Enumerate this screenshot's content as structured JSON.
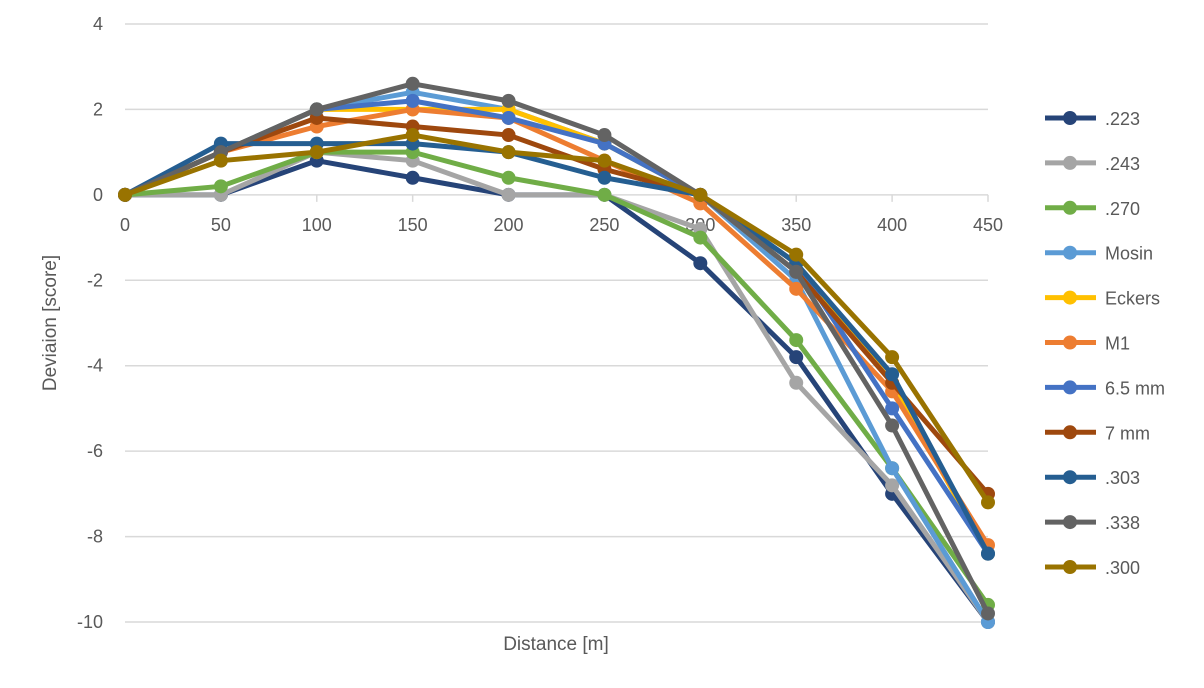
{
  "chart_data": {
    "type": "line",
    "title": "",
    "xlabel": "Distance [m]",
    "ylabel": "Deviaion [score]",
    "x": [
      0,
      50,
      100,
      150,
      200,
      250,
      300,
      350,
      400,
      450
    ],
    "xlim": [
      0,
      450
    ],
    "ylim": [
      -10,
      4
    ],
    "yticks": [
      4,
      2,
      0,
      -2,
      -4,
      -6,
      -8,
      -10
    ],
    "xticks": [
      0,
      50,
      100,
      150,
      200,
      250,
      300,
      350,
      400,
      450
    ],
    "grid": true,
    "legend_position": "right",
    "series": [
      {
        "name": ".223",
        "color": "#264478",
        "values": [
          0,
          0,
          0.8,
          0.4,
          0,
          0,
          -1.6,
          -3.8,
          -7.0,
          -10.0
        ]
      },
      {
        "name": ".243",
        "color": "#a5a5a5",
        "values": [
          0,
          0,
          1.0,
          0.8,
          0,
          0,
          -0.8,
          -4.4,
          -6.8,
          -10.0
        ]
      },
      {
        "name": ".270",
        "color": "#70ad47",
        "values": [
          0,
          0.2,
          1.0,
          1.0,
          0.4,
          0,
          -1.0,
          -3.4,
          -6.4,
          -9.6
        ]
      },
      {
        "name": "Mosin",
        "color": "#5b9bd5",
        "values": [
          0,
          1.0,
          2.0,
          2.4,
          2.0,
          1.2,
          0,
          -2.0,
          -6.4,
          -10.0
        ]
      },
      {
        "name": "Eckers",
        "color": "#ffc000",
        "values": [
          0,
          1.0,
          2.0,
          2.0,
          2.0,
          1.2,
          0,
          -1.6,
          -4.4,
          -8.4
        ]
      },
      {
        "name": "M1",
        "color": "#ed7d31",
        "values": [
          0,
          1.0,
          1.6,
          2.0,
          1.8,
          0.8,
          -0.2,
          -2.2,
          -4.6,
          -8.2
        ]
      },
      {
        "name": "6.5 mm",
        "color": "#4472c4",
        "values": [
          0,
          1.0,
          2.0,
          2.2,
          1.8,
          1.2,
          0,
          -1.6,
          -5.0,
          -8.4
        ]
      },
      {
        "name": "7 mm",
        "color": "#9e480e",
        "values": [
          0,
          1.0,
          1.8,
          1.6,
          1.4,
          0.6,
          0,
          -1.8,
          -4.4,
          -7.0
        ]
      },
      {
        "name": ".303",
        "color": "#255e91",
        "values": [
          0,
          1.2,
          1.2,
          1.2,
          1.0,
          0.4,
          0,
          -1.6,
          -4.2,
          -8.4
        ]
      },
      {
        "name": ".338",
        "color": "#636363",
        "values": [
          0,
          1.0,
          2.0,
          2.6,
          2.2,
          1.4,
          0,
          -1.8,
          -5.4,
          -9.8
        ]
      },
      {
        "name": ".300",
        "color": "#997300",
        "values": [
          0,
          0.8,
          1.0,
          1.4,
          1.0,
          0.8,
          0,
          -1.4,
          -3.8,
          -7.2
        ]
      }
    ]
  }
}
